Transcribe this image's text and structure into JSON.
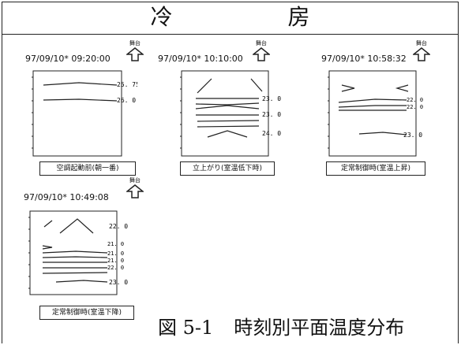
{
  "header": {
    "title": "冷　　房"
  },
  "panels": [
    {
      "timestamp": "97/09/10* 09:20:00",
      "direction_label": "舞台",
      "labels": [
        "25. 75",
        "26. 0"
      ],
      "caption": "空調起動前(朝一番)"
    },
    {
      "timestamp": "97/09/10* 10:10:00",
      "direction_label": "舞台",
      "labels": [
        "23. 0",
        "23. 0",
        "24. 0"
      ],
      "caption": "立上がり(室温低下時)"
    },
    {
      "timestamp": "97/09/10* 10:58:32",
      "direction_label": "舞台",
      "labels": [
        "22. 0",
        "22. 0",
        "23. 0"
      ],
      "caption": "定常制御時(室温上昇)"
    },
    {
      "timestamp": "97/09/10* 10:49:08",
      "direction_label": "舞台",
      "labels": [
        "22. 0",
        "21. 0",
        "21. 0",
        "21. 0",
        "22. 0",
        "23. 0"
      ],
      "caption": "定常制御時(室温下降)"
    }
  ],
  "figure_caption": {
    "number": "図 5-1",
    "title": "時刻別平面温度分布"
  },
  "icons": {
    "direction": "up-arrow-icon"
  }
}
